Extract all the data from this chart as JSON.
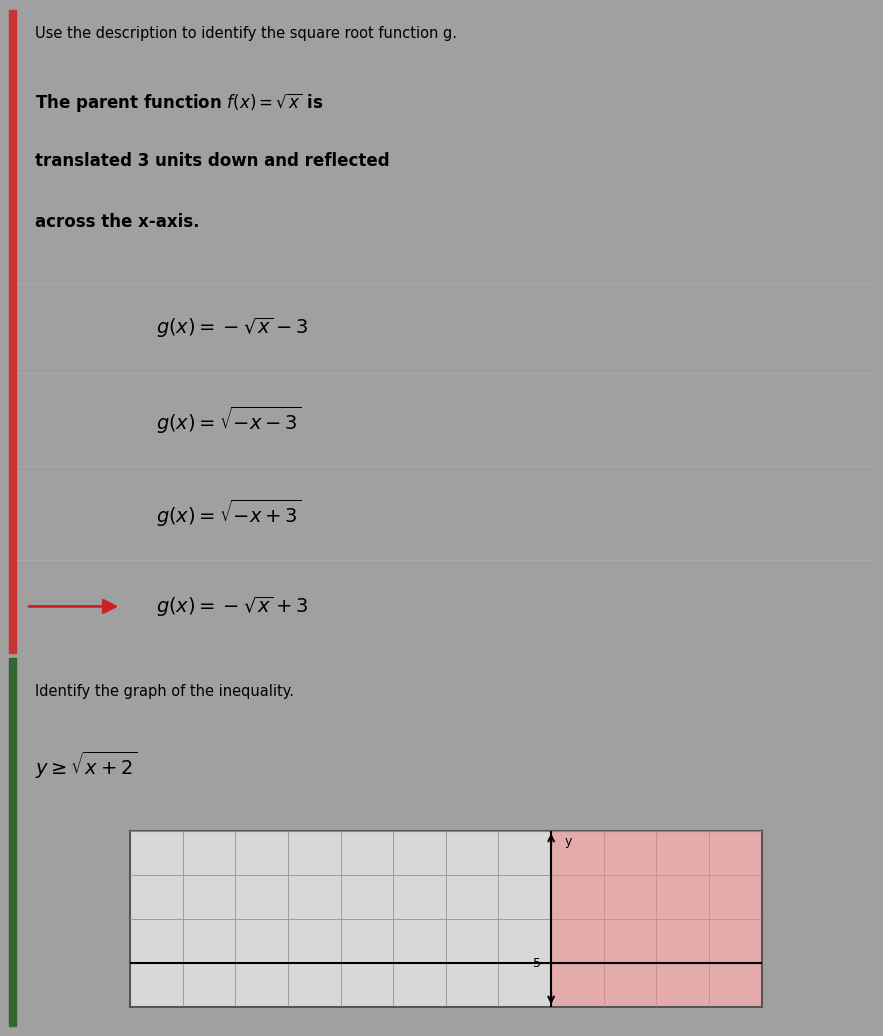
{
  "title_text": "Use the description to identify the square root function g.",
  "description_lines": [
    "The parent function $f\\left(x\\right)=\\sqrt{x}$ is",
    "translated 3 units down and reflected",
    "across the x-axis."
  ],
  "options": [
    "$g\\left(x\\right)=-\\sqrt{x}-3$",
    "$g\\left(x\\right)=\\sqrt{-x-3}$",
    "$g\\left(x\\right)=\\sqrt{-x+3}$",
    "$g\\left(x\\right)=-\\sqrt{x}+3$"
  ],
  "correct_index": 3,
  "panel2_title": "Identify the graph of the inequality.",
  "inequality": "$y\\geq\\sqrt{x+2}$",
  "panel1_bg": "#d2d2d2",
  "panel2_bg": "#d8d8d8",
  "fig_bg": "#a0a0a0",
  "arrow_color": "#cc2222",
  "divider_color_left": "#cc3333",
  "divider_color_left2": "#336633",
  "option_line_color": "#aaaaaa",
  "shaded_color": "#e8a0a0",
  "grid_color_light": "#888888",
  "grid_color_pink": "#cc8888"
}
